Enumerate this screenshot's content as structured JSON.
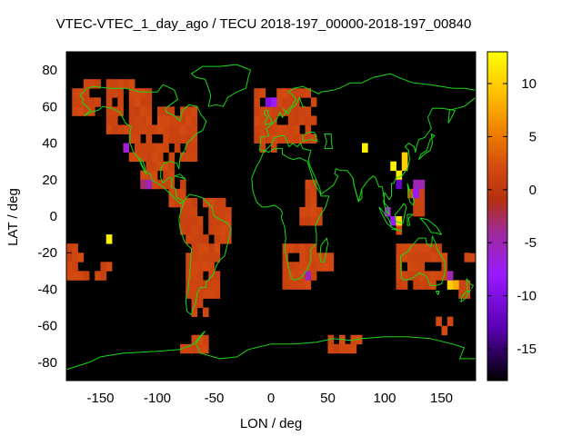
{
  "chart_data": {
    "type": "heatmap",
    "title": "VTEC-VTEC_1_day_ago / TECU 2018-197_00000-2018-197_00840",
    "xlabel": "LON / deg",
    "ylabel": "LAT / deg",
    "xlim": [
      -180,
      180
    ],
    "ylim": [
      -90,
      90
    ],
    "xticks": [
      -150,
      -100,
      -50,
      0,
      50,
      100,
      150
    ],
    "yticks": [
      -80,
      -60,
      -40,
      -20,
      0,
      20,
      40,
      60,
      80
    ],
    "colorbar": {
      "range": [
        -18,
        13
      ],
      "ticks": [
        10,
        5,
        0,
        -5,
        -10,
        -15
      ],
      "stops": [
        {
          "value": -18,
          "color": "#000000"
        },
        {
          "value": -13,
          "color": "#5a00b4"
        },
        {
          "value": -8,
          "color": "#9a1aff"
        },
        {
          "value": -4,
          "color": "#a02a9a"
        },
        {
          "value": -1,
          "color": "#b43010"
        },
        {
          "value": 2,
          "color": "#d24a10"
        },
        {
          "value": 5,
          "color": "#ec7800"
        },
        {
          "value": 9,
          "color": "#ffbe00"
        },
        {
          "value": 13,
          "color": "#ffff00"
        }
      ]
    },
    "background_value_color": "#000000",
    "default_cell_value": 1.5,
    "cell_size_deg": 5,
    "cell_regions": [
      {
        "lon": [
          -175,
          -150
        ],
        "lat": [
          55,
          70
        ]
      },
      {
        "lon": [
          -165,
          -120
        ],
        "lat": [
          70,
          75
        ]
      },
      {
        "lon": [
          -145,
          -105
        ],
        "lat": [
          45,
          70
        ]
      },
      {
        "lon": [
          -125,
          -65
        ],
        "lat": [
          30,
          60
        ]
      },
      {
        "lon": [
          -115,
          -85
        ],
        "lat": [
          15,
          30
        ]
      },
      {
        "lon": [
          -90,
          -75
        ],
        "lat": [
          5,
          20
        ]
      },
      {
        "lon": [
          -80,
          -35
        ],
        "lat": [
          -15,
          10
        ]
      },
      {
        "lon": [
          -75,
          -45
        ],
        "lat": [
          -45,
          -15
        ]
      },
      {
        "lon": [
          -70,
          -55
        ],
        "lat": [
          -55,
          -45
        ]
      },
      {
        "lon": [
          -15,
          40
        ],
        "lat": [
          40,
          70
        ]
      },
      {
        "lon": [
          -10,
          5
        ],
        "lat": [
          35,
          45
        ]
      },
      {
        "lon": [
          30,
          40
        ],
        "lat": [
          5,
          20
        ]
      },
      {
        "lon": [
          25,
          45
        ],
        "lat": [
          -5,
          5
        ]
      },
      {
        "lon": [
          10,
          40
        ],
        "lat": [
          -40,
          -15
        ]
      },
      {
        "lon": [
          40,
          55
        ],
        "lat": [
          -30,
          -20
        ]
      },
      {
        "lon": [
          110,
          155
        ],
        "lat": [
          -40,
          -15
        ]
      },
      {
        "lon": [
          165,
          175
        ],
        "lat": [
          -45,
          -35
        ]
      },
      {
        "lon": [
          170,
          180
        ],
        "lat": [
          -25,
          -15
        ]
      },
      {
        "lon": [
          -180,
          -165
        ],
        "lat": [
          -25,
          -15
        ]
      },
      {
        "lon": [
          -150,
          -140
        ],
        "lat": [
          -30,
          -25
        ]
      },
      {
        "lon": [
          120,
          135
        ],
        "lat": [
          0,
          15
        ]
      },
      {
        "lon": [
          145,
          160
        ],
        "lat": [
          -65,
          -55
        ]
      },
      {
        "lon": [
          -80,
          -55
        ],
        "lat": [
          -75,
          -65
        ]
      },
      {
        "lon": [
          50,
          80
        ],
        "lat": [
          -75,
          -65
        ]
      },
      {
        "lon": [
          -170,
          -145
        ],
        "lat": [
          -35,
          -30
        ]
      },
      {
        "lon": [
          -180,
          -170
        ],
        "lat": [
          -35,
          -25
        ]
      },
      {
        "lon": [
          110,
          115
        ],
        "lat": [
          -10,
          -5
        ]
      },
      {
        "lon": [
          150,
          160
        ],
        "lat": [
          5,
          10
        ]
      }
    ],
    "special_cells": [
      {
        "lon": -5,
        "lat": 60,
        "value": -10
      },
      {
        "lon": 0,
        "lat": 60,
        "value": -8
      },
      {
        "lon": -130,
        "lat": 35,
        "value": -6
      },
      {
        "lon": -110,
        "lat": 15,
        "value": -5
      },
      {
        "lon": -115,
        "lat": 15,
        "value": -3
      },
      {
        "lon": 80,
        "lat": 35,
        "value": 12
      },
      {
        "lon": 105,
        "lat": 25,
        "value": 12
      },
      {
        "lon": 115,
        "lat": 25,
        "value": 10
      },
      {
        "lon": 110,
        "lat": 20,
        "value": 12
      },
      {
        "lon": 115,
        "lat": 30,
        "value": 10
      },
      {
        "lon": 110,
        "lat": 15,
        "value": -12
      },
      {
        "lon": 125,
        "lat": 15,
        "value": -5
      },
      {
        "lon": 130,
        "lat": 15,
        "value": -5
      },
      {
        "lon": 125,
        "lat": 10,
        "value": -8
      },
      {
        "lon": 105,
        "lat": -5,
        "value": -8
      },
      {
        "lon": 110,
        "lat": -5,
        "value": 11
      },
      {
        "lon": -145,
        "lat": -15,
        "value": 12
      },
      {
        "lon": 155,
        "lat": -40,
        "value": 10
      },
      {
        "lon": 160,
        "lat": -40,
        "value": 8
      },
      {
        "lon": 155,
        "lat": -35,
        "value": -5
      },
      {
        "lon": 30,
        "lat": -35,
        "value": -5
      },
      {
        "lon": 100,
        "lat": 0,
        "value": -6
      }
    ]
  }
}
